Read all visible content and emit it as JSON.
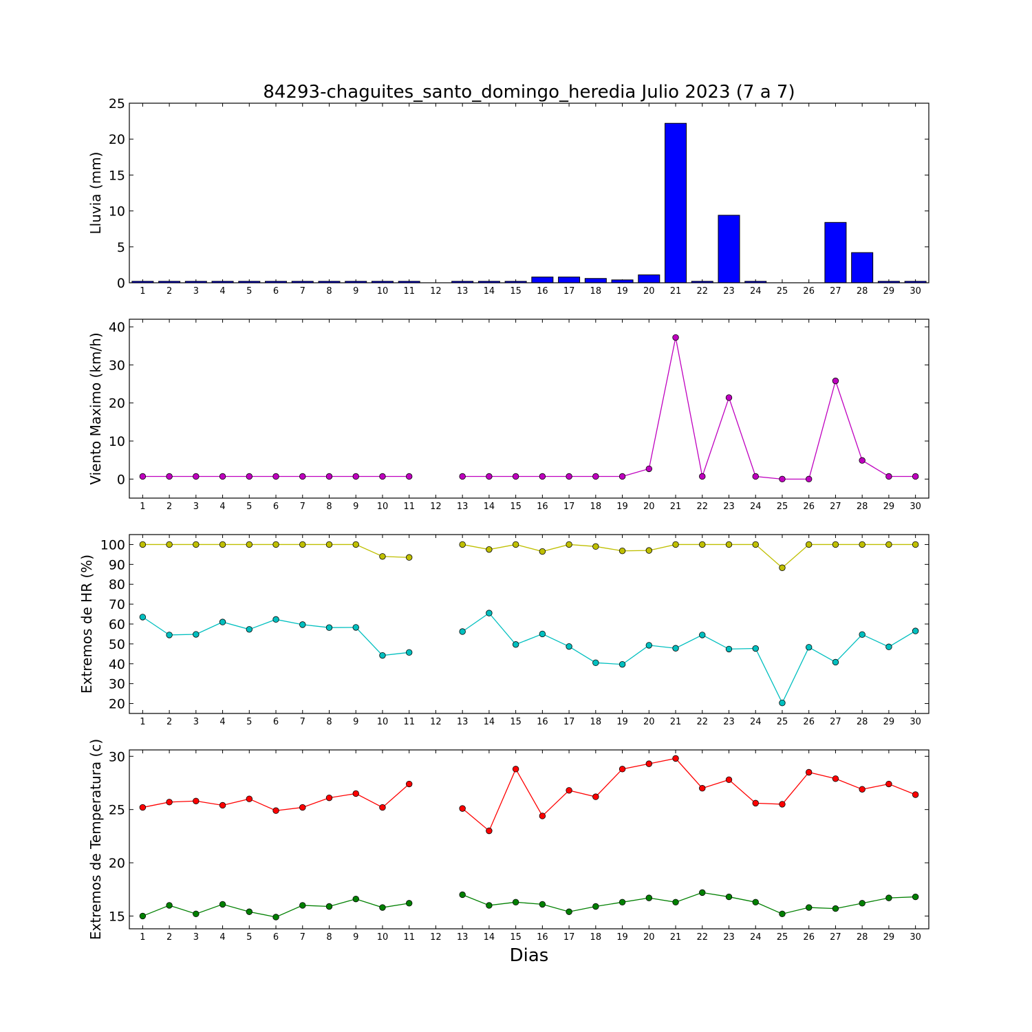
{
  "title": "84293-chaguites_santo_domingo_heredia Julio 2023  (7 a 7)",
  "xlabel": "Dias",
  "chart_data": [
    {
      "type": "bar",
      "ylabel": "Lluvia (mm)",
      "ylim": [
        0,
        25
      ],
      "yticks": [
        0,
        5,
        10,
        15,
        20,
        25
      ],
      "categories": [
        "1",
        "2",
        "3",
        "4",
        "5",
        "6",
        "7",
        "8",
        "9",
        "10",
        "11",
        "12",
        "13",
        "14",
        "15",
        "16",
        "17",
        "18",
        "19",
        "20",
        "21",
        "22",
        "23",
        "24",
        "25",
        "26",
        "27",
        "28",
        "29",
        "30"
      ],
      "series": [
        {
          "color": "#0000ff",
          "values": [
            0.2,
            0.2,
            0.2,
            0.2,
            0.2,
            0.2,
            0.2,
            0.2,
            0.2,
            0.2,
            0.2,
            null,
            0.2,
            0.2,
            0.2,
            0.8,
            0.8,
            0.6,
            0.4,
            1.1,
            22.2,
            0.2,
            9.4,
            0.2,
            0,
            0,
            8.4,
            4.2,
            0.2,
            0.2
          ]
        }
      ]
    },
    {
      "type": "line",
      "ylabel": "Viento Maximo (km/h)",
      "ylim": [
        -5,
        42
      ],
      "yticks": [
        0,
        10,
        20,
        30,
        40
      ],
      "categories": [
        "1",
        "2",
        "3",
        "4",
        "5",
        "6",
        "7",
        "8",
        "9",
        "10",
        "11",
        "12",
        "13",
        "14",
        "15",
        "16",
        "17",
        "18",
        "19",
        "20",
        "21",
        "22",
        "23",
        "24",
        "25",
        "26",
        "27",
        "28",
        "29",
        "30"
      ],
      "series": [
        {
          "color": "#bf00bf",
          "values": [
            0.7,
            0.7,
            0.7,
            0.7,
            0.7,
            0.7,
            0.7,
            0.7,
            0.7,
            0.7,
            0.7,
            null,
            0.7,
            0.7,
            0.7,
            0.7,
            0.7,
            0.7,
            0.7,
            2.7,
            37.2,
            0.7,
            21.4,
            0.7,
            0,
            0,
            25.8,
            4.9,
            0.7,
            0.7
          ]
        }
      ]
    },
    {
      "type": "line",
      "ylabel": "Extremos de HR (%)",
      "ylim": [
        15,
        105
      ],
      "yticks": [
        20,
        30,
        40,
        50,
        60,
        70,
        80,
        90,
        100
      ],
      "categories": [
        "1",
        "2",
        "3",
        "4",
        "5",
        "6",
        "7",
        "8",
        "9",
        "10",
        "11",
        "12",
        "13",
        "14",
        "15",
        "16",
        "17",
        "18",
        "19",
        "20",
        "21",
        "22",
        "23",
        "24",
        "25",
        "26",
        "27",
        "28",
        "29",
        "30"
      ],
      "series": [
        {
          "color": "#bfbf00",
          "values": [
            100,
            100,
            100,
            100,
            100,
            100,
            100,
            100,
            100,
            94,
            93.5,
            null,
            100,
            97.5,
            100,
            96.5,
            100,
            99,
            96.8,
            97,
            100,
            100,
            100,
            100,
            88.3,
            100,
            100,
            100,
            100,
            100
          ]
        },
        {
          "color": "#00bfbf",
          "values": [
            63.5,
            54.5,
            54.8,
            61,
            57.3,
            62.3,
            59.7,
            58.2,
            58.3,
            44.2,
            45.7,
            null,
            56.2,
            65.5,
            49.7,
            55,
            48.7,
            40.5,
            39.7,
            49.3,
            47.8,
            54.5,
            47.4,
            47.7,
            20.3,
            48.3,
            40.8,
            54.7,
            48.5,
            56.5
          ]
        }
      ]
    },
    {
      "type": "line",
      "ylabel": "Extremos de Temperatura (c)",
      "ylim": [
        13.8,
        30.6
      ],
      "yticks": [
        15,
        20,
        25,
        30
      ],
      "categories": [
        "1",
        "2",
        "3",
        "4",
        "5",
        "6",
        "7",
        "8",
        "9",
        "10",
        "11",
        "12",
        "13",
        "14",
        "15",
        "16",
        "17",
        "18",
        "19",
        "20",
        "21",
        "22",
        "23",
        "24",
        "25",
        "26",
        "27",
        "28",
        "29",
        "30"
      ],
      "series": [
        {
          "color": "#ff0000",
          "values": [
            25.2,
            25.7,
            25.8,
            25.4,
            26,
            24.9,
            25.2,
            26.1,
            26.5,
            25.2,
            27.4,
            null,
            25.1,
            23,
            28.8,
            24.4,
            26.8,
            26.2,
            28.8,
            29.3,
            29.8,
            27,
            27.8,
            25.6,
            25.5,
            28.5,
            27.9,
            26.9,
            27.4,
            26.4
          ]
        },
        {
          "color": "#008000",
          "values": [
            15,
            16,
            15.2,
            16.1,
            15.4,
            14.9,
            16,
            15.9,
            16.6,
            15.8,
            16.2,
            null,
            17,
            16,
            16.3,
            16.1,
            15.4,
            15.9,
            16.3,
            16.7,
            16.3,
            17.2,
            16.8,
            16.3,
            15.2,
            15.8,
            15.7,
            16.2,
            16.7,
            16.8
          ]
        }
      ]
    }
  ]
}
